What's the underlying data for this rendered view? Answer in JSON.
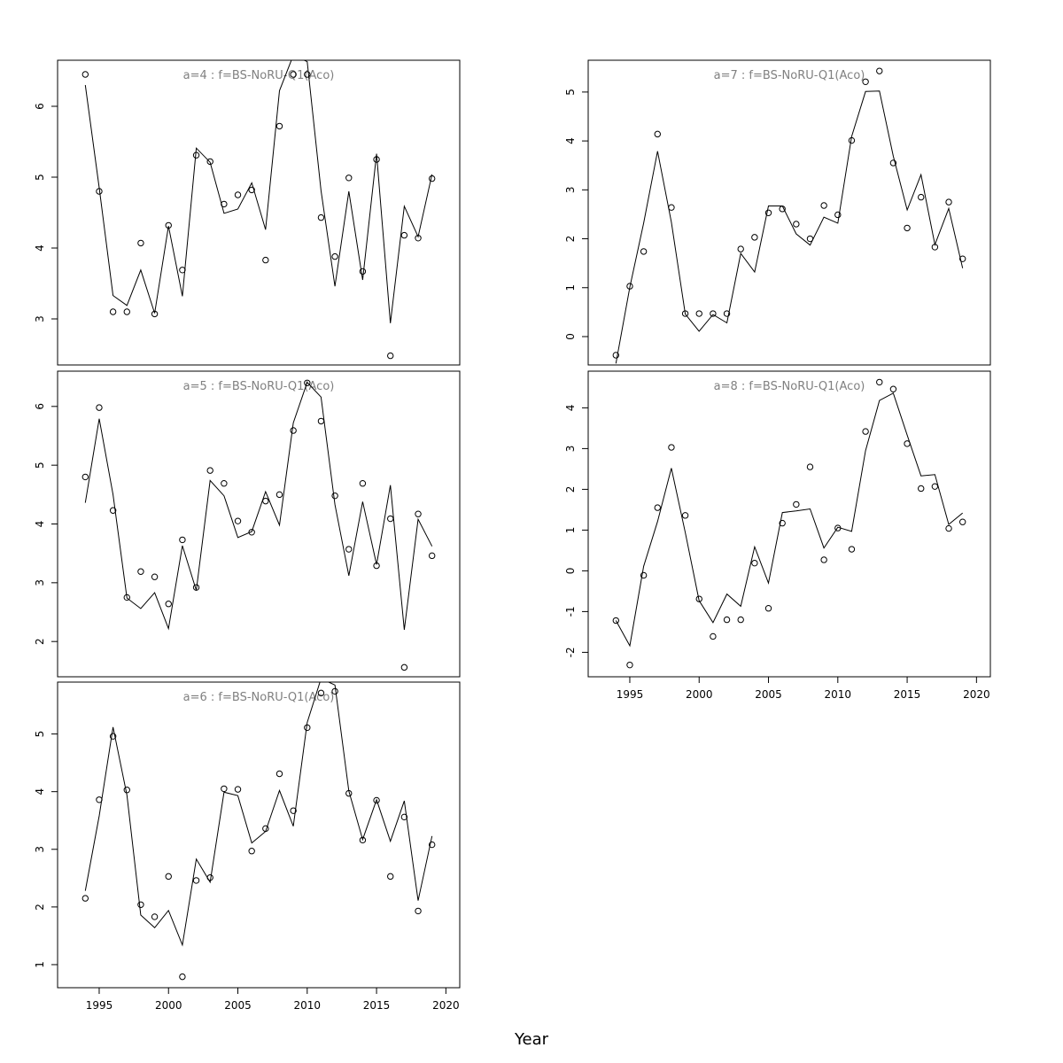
{
  "xlabel": "Year",
  "chart_data": [
    {
      "type": "line",
      "title": "a=4  :  f=BS-NoRU-Q1(Aco)",
      "x": [
        1994,
        1995,
        1996,
        1997,
        1998,
        1999,
        2000,
        2001,
        2002,
        2003,
        2004,
        2005,
        2006,
        2007,
        2008,
        2009,
        2010,
        2011,
        2012,
        2013,
        2014,
        2015,
        2016,
        2017,
        2018,
        2019
      ],
      "observed": [
        6.45,
        4.8,
        3.1,
        3.1,
        4.07,
        3.07,
        4.32,
        3.69,
        5.31,
        5.22,
        4.62,
        4.75,
        4.82,
        3.83,
        5.72,
        6.45,
        6.45,
        4.43,
        3.88,
        4.99,
        3.67,
        5.25,
        2.48,
        4.18,
        4.14,
        4.98
      ],
      "fitted": [
        6.3,
        4.85,
        3.33,
        3.19,
        3.69,
        3.08,
        4.31,
        3.32,
        5.41,
        5.21,
        4.49,
        4.55,
        4.92,
        4.26,
        6.22,
        6.72,
        6.63,
        4.81,
        3.46,
        4.8,
        3.55,
        5.33,
        2.94,
        4.59,
        4.16,
        5.04
      ],
      "xlim": [
        1992,
        2021
      ],
      "ylim": [
        2.35,
        6.65
      ],
      "xticks": [
        1995,
        2000,
        2005,
        2010,
        2015,
        2020
      ],
      "yticks": [
        3,
        4,
        5,
        6
      ],
      "ytick_labels": [
        "3",
        "4",
        "5",
        "6"
      ],
      "grid": false
    },
    {
      "type": "line",
      "title": "a=5  :  f=BS-NoRU-Q1(Aco)",
      "x": [
        1994,
        1995,
        1996,
        1997,
        1998,
        1999,
        2000,
        2001,
        2002,
        2003,
        2004,
        2005,
        2006,
        2007,
        2008,
        2009,
        2010,
        2011,
        2012,
        2013,
        2014,
        2015,
        2016,
        2017,
        2018,
        2019
      ],
      "observed": [
        4.8,
        5.98,
        4.23,
        2.75,
        3.19,
        3.1,
        2.64,
        3.73,
        2.92,
        4.91,
        4.69,
        4.05,
        3.86,
        4.39,
        4.5,
        5.59,
        6.4,
        5.75,
        4.48,
        3.57,
        4.69,
        3.29,
        4.09,
        1.56,
        4.17,
        3.46
      ],
      "fitted": [
        4.36,
        5.79,
        4.5,
        2.74,
        2.56,
        2.83,
        2.22,
        3.63,
        2.87,
        4.74,
        4.48,
        3.77,
        3.87,
        4.55,
        3.98,
        5.72,
        6.41,
        6.16,
        4.33,
        3.12,
        4.38,
        3.31,
        4.66,
        2.2,
        4.08,
        3.62
      ],
      "xlim": [
        1992,
        2021
      ],
      "ylim": [
        1.4,
        6.6
      ],
      "xticks": [
        1995,
        2000,
        2005,
        2010,
        2015,
        2020
      ],
      "yticks": [
        2,
        3,
        4,
        5,
        6
      ],
      "ytick_labels": [
        "2",
        "3",
        "4",
        "5",
        "6"
      ],
      "grid": false
    },
    {
      "type": "line",
      "title": "a=6  :  f=BS-NoRU-Q1(Aco)",
      "x": [
        1994,
        1995,
        1996,
        1997,
        1998,
        1999,
        2000,
        2001,
        2002,
        2003,
        2004,
        2005,
        2006,
        2007,
        2008,
        2009,
        2010,
        2011,
        2012,
        2013,
        2014,
        2015,
        2016,
        2017,
        2018,
        2019
      ],
      "observed": [
        2.15,
        3.86,
        4.96,
        4.03,
        2.04,
        1.83,
        2.53,
        0.79,
        2.46,
        2.51,
        4.05,
        4.04,
        2.97,
        3.36,
        4.31,
        3.67,
        5.11,
        5.71,
        5.74,
        3.97,
        3.16,
        3.85,
        2.53,
        3.56,
        1.93,
        3.08
      ],
      "fitted": [
        2.28,
        3.58,
        5.12,
        3.94,
        1.86,
        1.64,
        1.94,
        1.34,
        2.83,
        2.43,
        3.99,
        3.93,
        3.11,
        3.31,
        4.02,
        3.4,
        5.2,
        5.96,
        5.85,
        4.01,
        3.17,
        3.86,
        3.14,
        3.84,
        2.11,
        3.23
      ],
      "xlim": [
        1992,
        2021
      ],
      "ylim": [
        0.6,
        5.9
      ],
      "xticks": [
        1995,
        2000,
        2005,
        2010,
        2015,
        2020
      ],
      "xtick_labels": [
        "1995",
        "2000",
        "2005",
        "2010",
        "2015",
        "2020"
      ],
      "yticks": [
        1,
        2,
        3,
        4,
        5
      ],
      "ytick_labels": [
        "1",
        "2",
        "3",
        "4",
        "5"
      ],
      "grid": false
    },
    {
      "type": "line",
      "title": "a=7  :  f=BS-NoRU-Q1(Aco)",
      "x": [
        1994,
        1995,
        1996,
        1997,
        1998,
        1999,
        2000,
        2001,
        2002,
        2003,
        2004,
        2005,
        2006,
        2007,
        2008,
        2009,
        2010,
        2011,
        2012,
        2013,
        2014,
        2015,
        2016,
        2017,
        2018,
        2019
      ],
      "observed": [
        -0.38,
        1.03,
        1.74,
        4.14,
        2.64,
        0.47,
        0.47,
        0.47,
        0.47,
        1.79,
        2.03,
        2.53,
        2.61,
        2.3,
        2.0,
        2.68,
        2.49,
        4.01,
        5.21,
        5.43,
        3.55,
        2.22,
        2.85,
        1.83,
        2.75,
        1.59
      ],
      "fitted": [
        -0.55,
        1.01,
        2.32,
        3.79,
        2.34,
        0.46,
        0.11,
        0.45,
        0.28,
        1.7,
        1.32,
        2.67,
        2.67,
        2.1,
        1.87,
        2.44,
        2.32,
        4.09,
        5.01,
        5.02,
        3.69,
        2.59,
        3.31,
        1.88,
        2.62,
        1.4
      ],
      "xlim": [
        1992,
        2021
      ],
      "ylim": [
        -0.58,
        5.65
      ],
      "xticks": [
        1995,
        2000,
        2005,
        2010,
        2015,
        2020
      ],
      "yticks": [
        0,
        1,
        2,
        3,
        4,
        5
      ],
      "ytick_labels": [
        "0",
        "1",
        "2",
        "3",
        "4",
        "5"
      ],
      "grid": false
    },
    {
      "type": "line",
      "title": "a=8  :  f=BS-NoRU-Q1(Aco)",
      "x": [
        1994,
        1995,
        1996,
        1997,
        1998,
        1999,
        2000,
        2001,
        2002,
        2003,
        2004,
        2005,
        2006,
        2007,
        2008,
        2009,
        2010,
        2011,
        2012,
        2013,
        2014,
        2015,
        2016,
        2017,
        2018,
        2019
      ],
      "observed": [
        -1.22,
        -2.31,
        -0.11,
        1.55,
        3.03,
        1.36,
        -0.69,
        -1.61,
        -1.2,
        -1.2,
        0.19,
        -0.92,
        1.17,
        1.63,
        2.55,
        0.27,
        1.05,
        0.53,
        3.42,
        4.63,
        4.46,
        3.12,
        2.02,
        2.07,
        1.04,
        1.2
      ],
      "fitted": [
        -1.22,
        -1.84,
        0.11,
        1.21,
        2.52,
        0.94,
        -0.73,
        -1.27,
        -0.57,
        -0.87,
        0.59,
        -0.3,
        1.43,
        1.47,
        1.52,
        0.56,
        1.07,
        0.97,
        2.95,
        4.18,
        4.36,
        3.33,
        2.33,
        2.36,
        1.14,
        1.42
      ],
      "xlim": [
        1992,
        2021
      ],
      "ylim": [
        -2.6,
        4.9
      ],
      "xticks": [
        1995,
        2000,
        2005,
        2010,
        2015,
        2020
      ],
      "xtick_labels": [
        "1995",
        "2000",
        "2005",
        "2010",
        "2015",
        "2020"
      ],
      "yticks": [
        -2,
        -1,
        0,
        1,
        2,
        3,
        4
      ],
      "ytick_labels": [
        "-2",
        "-1",
        "0",
        "1",
        "2",
        "3",
        "4"
      ],
      "grid": false
    }
  ]
}
